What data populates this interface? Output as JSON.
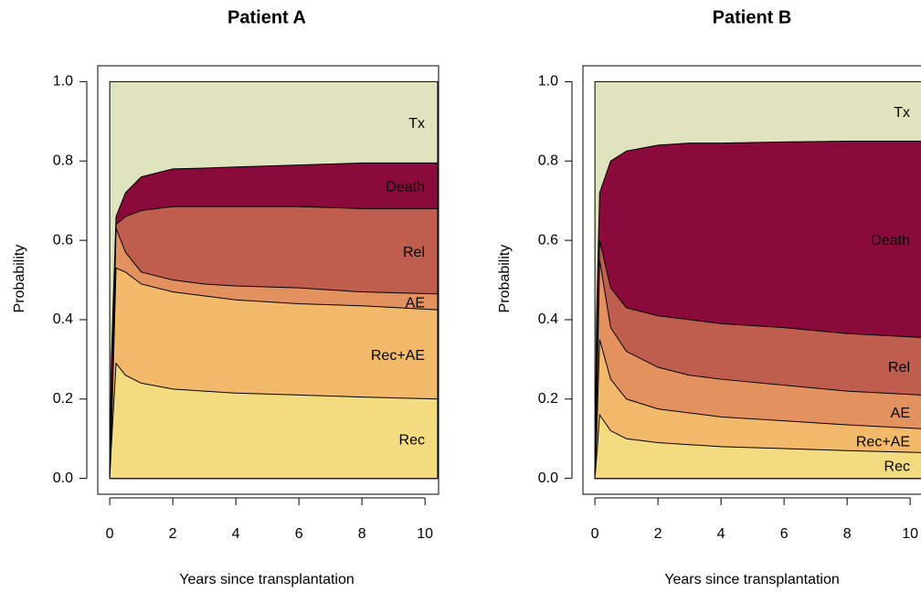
{
  "chart_data": [
    {
      "type": "area",
      "stacked": true,
      "title": "Patient A",
      "xlabel": "Years since transplantation",
      "ylabel": "Probability",
      "x": [
        0,
        0.05,
        0.2,
        0.5,
        1,
        2,
        3,
        4,
        6,
        8,
        10.4
      ],
      "xlim": [
        -0.38,
        10.43
      ],
      "ylim": [
        -0.04,
        1.04
      ],
      "xticks": [
        0,
        2,
        4,
        6,
        8,
        10
      ],
      "yticks": [
        {
          "value": 0,
          "label": "0.0"
        },
        0.2,
        0.4,
        0.6,
        0.8,
        {
          "value": 1,
          "label": "1.0"
        }
      ],
      "series": [
        {
          "name": "Rec",
          "color": "#f3dc80",
          "values": [
            0,
            0.08,
            0.29,
            0.26,
            0.24,
            0.225,
            0.22,
            0.215,
            0.21,
            0.205,
            0.2
          ]
        },
        {
          "name": "Rec+AE",
          "color": "#f3b96a",
          "values": [
            0,
            0.02,
            0.24,
            0.26,
            0.25,
            0.245,
            0.24,
            0.235,
            0.23,
            0.23,
            0.225
          ]
        },
        {
          "name": "AE",
          "color": "#e49160",
          "values": [
            0,
            0.02,
            0.1,
            0.05,
            0.03,
            0.03,
            0.03,
            0.035,
            0.04,
            0.035,
            0.04
          ]
        },
        {
          "name": "Rel",
          "color": "#bf5e4f",
          "values": [
            0,
            0.02,
            0.01,
            0.09,
            0.155,
            0.185,
            0.195,
            0.2,
            0.205,
            0.21,
            0.215
          ]
        },
        {
          "name": "Death",
          "color": "#8b0a3c",
          "values": [
            0,
            0.16,
            0.02,
            0.06,
            0.085,
            0.095,
            0.097,
            0.1,
            0.105,
            0.115,
            0.115
          ]
        },
        {
          "name": "Tx",
          "color": "#dfe4bf",
          "values": [
            1,
            0.7,
            0.34,
            0.28,
            0.24,
            0.22,
            0.218,
            0.215,
            0.21,
            0.205,
            0.205
          ]
        }
      ]
    },
    {
      "type": "area",
      "stacked": true,
      "title": "Patient B",
      "xlabel": "Years since transplantation",
      "ylabel": "Probability",
      "x": [
        0,
        0.05,
        0.15,
        0.5,
        1,
        2,
        3,
        4,
        6,
        8,
        10.4
      ],
      "xlim": [
        -0.38,
        10.43
      ],
      "ylim": [
        -0.04,
        1.04
      ],
      "xticks": [
        0,
        2,
        4,
        6,
        8,
        10
      ],
      "yticks": [
        {
          "value": 0,
          "label": "0.0"
        },
        0.2,
        0.4,
        0.6,
        0.8,
        {
          "value": 1,
          "label": "1.0"
        }
      ],
      "series": [
        {
          "name": "Rec",
          "color": "#f3dc80",
          "values": [
            0,
            0.05,
            0.16,
            0.12,
            0.1,
            0.09,
            0.085,
            0.08,
            0.075,
            0.07,
            0.065
          ]
        },
        {
          "name": "Rec+AE",
          "color": "#f3b96a",
          "values": [
            0,
            0.05,
            0.19,
            0.13,
            0.1,
            0.085,
            0.08,
            0.075,
            0.07,
            0.065,
            0.06
          ]
        },
        {
          "name": "AE",
          "color": "#e49160",
          "values": [
            0,
            0.05,
            0.2,
            0.13,
            0.12,
            0.105,
            0.095,
            0.095,
            0.09,
            0.085,
            0.085
          ]
        },
        {
          "name": "Rel",
          "color": "#bf5e4f",
          "values": [
            0,
            0.05,
            0.05,
            0.1,
            0.11,
            0.13,
            0.14,
            0.14,
            0.145,
            0.145,
            0.145
          ]
        },
        {
          "name": "Death",
          "color": "#8b0a3c",
          "values": [
            0,
            0.2,
            0.12,
            0.32,
            0.395,
            0.43,
            0.445,
            0.455,
            0.468,
            0.485,
            0.495
          ]
        },
        {
          "name": "Tx",
          "color": "#dfe4bf",
          "values": [
            1,
            0.6,
            0.28,
            0.2,
            0.175,
            0.16,
            0.155,
            0.155,
            0.152,
            0.15,
            0.15
          ]
        }
      ]
    }
  ]
}
